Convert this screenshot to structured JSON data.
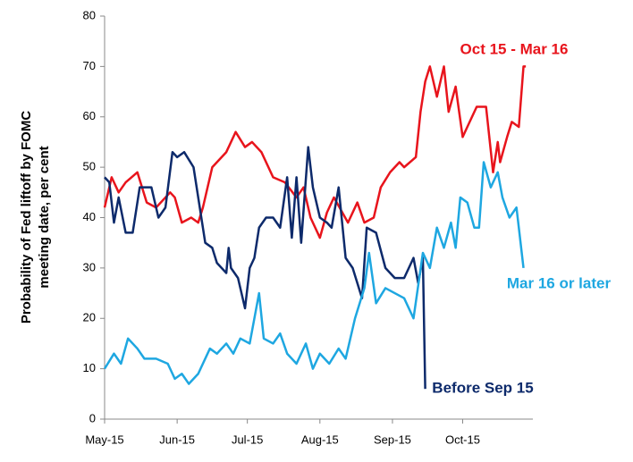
{
  "chart_data": {
    "type": "line",
    "ylabel": [
      "Probability of Fed liftoff by FOMC",
      "meeting date, per cent"
    ],
    "xlim": [
      0,
      183
    ],
    "xticks": [
      {
        "value": 0,
        "label": "May-15"
      },
      {
        "value": 31,
        "label": "Jun-15"
      },
      {
        "value": 61,
        "label": "Jul-15"
      },
      {
        "value": 92,
        "label": "Aug-15"
      },
      {
        "value": 123,
        "label": "Sep-15"
      },
      {
        "value": 153,
        "label": "Oct-15"
      }
    ],
    "ylim": [
      0,
      80
    ],
    "yticks": [
      0,
      10,
      20,
      30,
      40,
      50,
      60,
      70,
      80
    ],
    "grid": false,
    "series": [
      {
        "name": "Oct 15 - Mar 16",
        "color": "#e8141c",
        "x": [
          0,
          3,
          6,
          9,
          14,
          18,
          22,
          28,
          30,
          33,
          37,
          40,
          42,
          46,
          48,
          52,
          56,
          60,
          63,
          67,
          72,
          77,
          82,
          85,
          88,
          92,
          95,
          98,
          104,
          108,
          111,
          115,
          118,
          122,
          126,
          128,
          133,
          135,
          137,
          139,
          142,
          145,
          147,
          150,
          153,
          155,
          159,
          163,
          166,
          168,
          169,
          172,
          174,
          177,
          179,
          180
        ],
        "values": [
          42,
          48,
          45,
          47,
          49,
          43,
          42,
          45,
          44,
          39,
          40,
          39,
          42,
          50,
          51,
          53,
          57,
          54,
          55,
          53,
          48,
          47,
          44,
          46,
          40,
          36,
          41,
          44,
          39,
          43,
          39,
          40,
          46,
          49,
          51,
          50,
          52,
          61,
          67,
          70,
          64,
          70,
          61,
          66,
          56,
          58,
          62,
          62,
          49,
          55,
          51,
          56,
          59,
          58,
          70,
          70
        ]
      },
      {
        "name": "Before Sep 15",
        "color": "#0d2a6b",
        "x": [
          0,
          2,
          4,
          6,
          9,
          12,
          15,
          20,
          23,
          26,
          29,
          31,
          34,
          38,
          40,
          43,
          46,
          48,
          52,
          53,
          54,
          57,
          60,
          62,
          64,
          66,
          69,
          72,
          75,
          78,
          80,
          82,
          84,
          87,
          89,
          92,
          95,
          97,
          100,
          103,
          106,
          110,
          112,
          116,
          120,
          124,
          128,
          132,
          134,
          136,
          137
        ],
        "values": [
          48,
          47,
          39,
          44,
          37,
          37,
          46,
          46,
          40,
          42,
          53,
          52,
          53,
          50,
          44,
          35,
          34,
          31,
          29,
          34,
          30,
          28,
          22,
          30,
          32,
          38,
          40,
          40,
          38,
          48,
          36,
          48,
          35,
          54,
          46,
          40,
          39,
          38,
          46,
          32,
          30,
          24,
          38,
          37,
          30,
          28,
          28,
          32,
          27,
          32,
          6
        ]
      },
      {
        "name": "Mar 16 or later",
        "color": "#1ea7e1",
        "x": [
          0,
          4,
          7,
          10,
          14,
          17,
          22,
          27,
          30,
          33,
          36,
          40,
          45,
          48,
          52,
          55,
          58,
          62,
          66,
          68,
          72,
          75,
          78,
          82,
          86,
          89,
          92,
          96,
          100,
          103,
          107,
          111,
          113,
          116,
          120,
          124,
          128,
          132,
          136,
          139,
          142,
          145,
          148,
          150,
          152,
          155,
          158,
          160,
          162,
          165,
          168,
          170,
          173,
          176,
          179
        ],
        "values": [
          10,
          13,
          11,
          16,
          14,
          12,
          12,
          11,
          8,
          9,
          7,
          9,
          14,
          13,
          15,
          13,
          16,
          15,
          25,
          16,
          15,
          17,
          13,
          11,
          15,
          10,
          13,
          11,
          14,
          12,
          20,
          26,
          33,
          23,
          26,
          25,
          24,
          20,
          33,
          30,
          38,
          34,
          39,
          34,
          44,
          43,
          38,
          38,
          51,
          46,
          49,
          44,
          40,
          42,
          30
        ]
      }
    ]
  }
}
